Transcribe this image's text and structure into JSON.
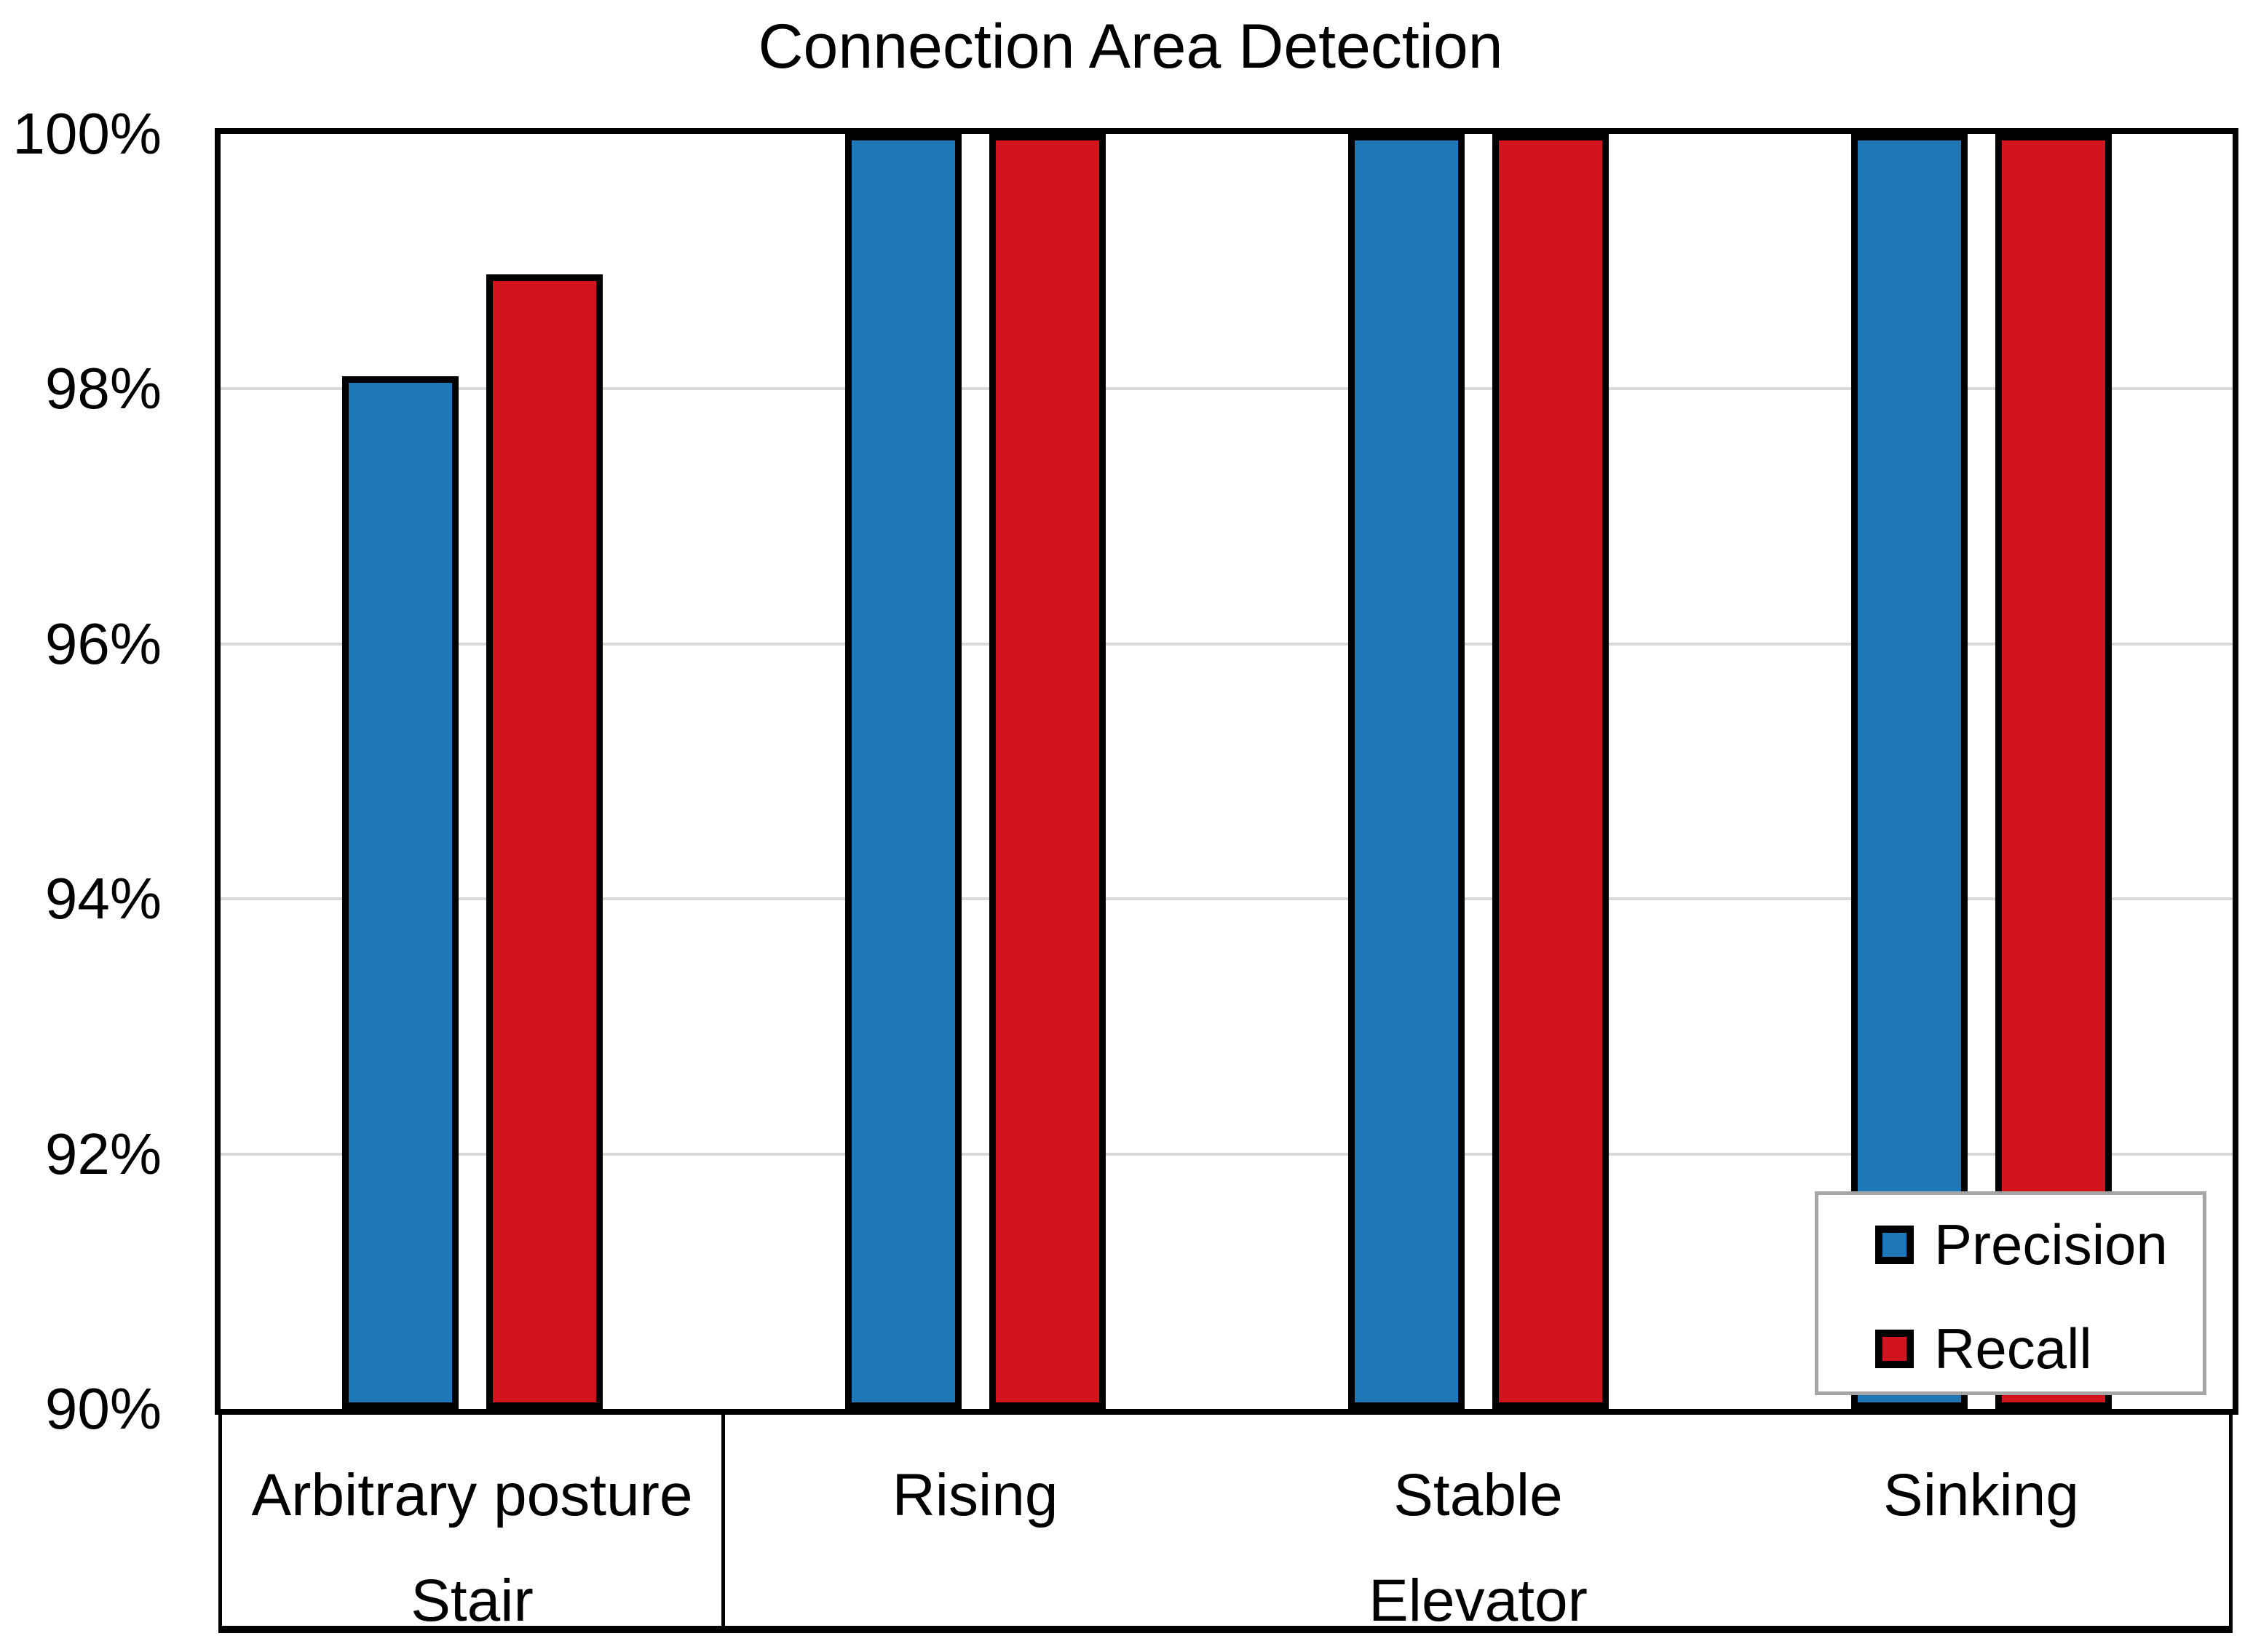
{
  "title": "Connection Area Detection",
  "colors": {
    "precision": "#1e78b7",
    "recall": "#d2141e",
    "bar_border": "#000000",
    "gridline": "#d9d9d9",
    "axis": "#000000",
    "legend_border": "#a6a6a6",
    "background": "#ffffff"
  },
  "y_axis": {
    "unit": "%",
    "min": 90,
    "max": 100,
    "ticks": [
      {
        "label": "100%",
        "value": 100
      },
      {
        "label": "98%",
        "value": 98
      },
      {
        "label": "96%",
        "value": 96
      },
      {
        "label": "94%",
        "value": 94
      },
      {
        "label": "92%",
        "value": 92
      },
      {
        "label": "90%",
        "value": 90
      }
    ],
    "gridline_values": [
      98,
      96,
      94,
      92
    ]
  },
  "x_axis": {
    "categories": [
      "Arbitrary posture",
      "Rising",
      "Stable",
      "Sinking"
    ],
    "groups": [
      {
        "label": "Stair",
        "start": 0,
        "span": 1
      },
      {
        "label": "Elevator",
        "start": 1,
        "span": 3
      }
    ]
  },
  "legend": {
    "items": [
      {
        "label": "Precision",
        "color": "#1e78b7"
      },
      {
        "label": "Recall",
        "color": "#d2141e"
      }
    ]
  },
  "chart_data": {
    "type": "bar",
    "title": "Connection Area Detection",
    "categories": [
      "Arbitrary posture (Stair)",
      "Rising (Elevator)",
      "Stable (Elevator)",
      "Sinking (Elevator)"
    ],
    "series": [
      {
        "name": "Precision",
        "color": "#1e78b7",
        "values": [
          98.1,
          100,
          100,
          100
        ]
      },
      {
        "name": "Recall",
        "color": "#d2141e",
        "values": [
          98.9,
          100,
          100,
          100
        ]
      }
    ],
    "ylabel": "",
    "xlabel": "",
    "ylim": [
      90,
      100
    ],
    "ytick_step": 2,
    "ytick_format": "percent",
    "grid": "horizontal",
    "legend_position": "inside-bottom-right"
  }
}
